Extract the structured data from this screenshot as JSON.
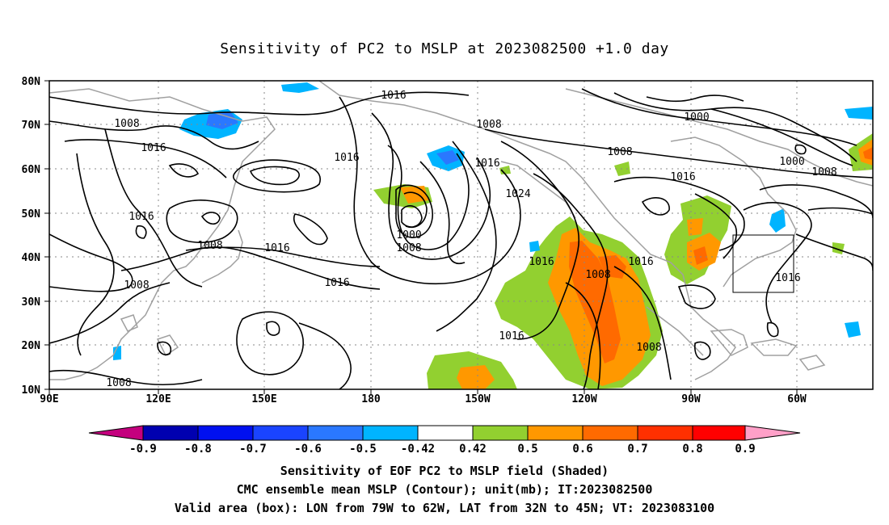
{
  "title": "Sensitivity of PC2 to MSLP at 2023082500 +1.0 day",
  "map": {
    "lat_labels": [
      "80N",
      "70N",
      "60N",
      "50N",
      "40N",
      "30N",
      "20N",
      "10N"
    ],
    "lon_labels": [
      "90E",
      "120E",
      "150E",
      "180",
      "150W",
      "120W",
      "90W",
      "60W"
    ],
    "contour_labels": [
      "1008",
      "1016",
      "1016",
      "1016",
      "1008",
      "1016",
      "1000",
      "1008",
      "1016",
      "1024",
      "1016",
      "1008",
      "1016",
      "1000",
      "1008",
      "1016",
      "1016",
      "1016",
      "1008",
      "1008",
      "1008",
      "1016",
      "1008",
      "1000"
    ],
    "valid_box": {
      "lon_from": "79W",
      "lon_to": "62W",
      "lat_from": "32N",
      "lat_to": "45N"
    }
  },
  "colorbar": {
    "labels": [
      "-0.9",
      "-0.8",
      "-0.7",
      "-0.6",
      "-0.5",
      "-0.42",
      "0.42",
      "0.5",
      "0.6",
      "0.7",
      "0.8",
      "0.9"
    ],
    "colors": [
      "#c4007e",
      "#0000b0",
      "#0010f0",
      "#1a44ff",
      "#2a78ff",
      "#00b4ff",
      "#ffffff",
      "#92d030",
      "#ff9800",
      "#ff6a00",
      "#ff3000",
      "#ff0000",
      "#ffa0c8"
    ]
  },
  "captions": {
    "line1": "Sensitivity of EOF PC2 to MSLP field (Shaded)",
    "line2": "CMC ensemble mean MSLP (Contour); unit(mb); IT:2023082500",
    "line3": "Valid area (box): LON from 79W to 62W, LAT from 32N to 45N; VT: 2023083100"
  }
}
